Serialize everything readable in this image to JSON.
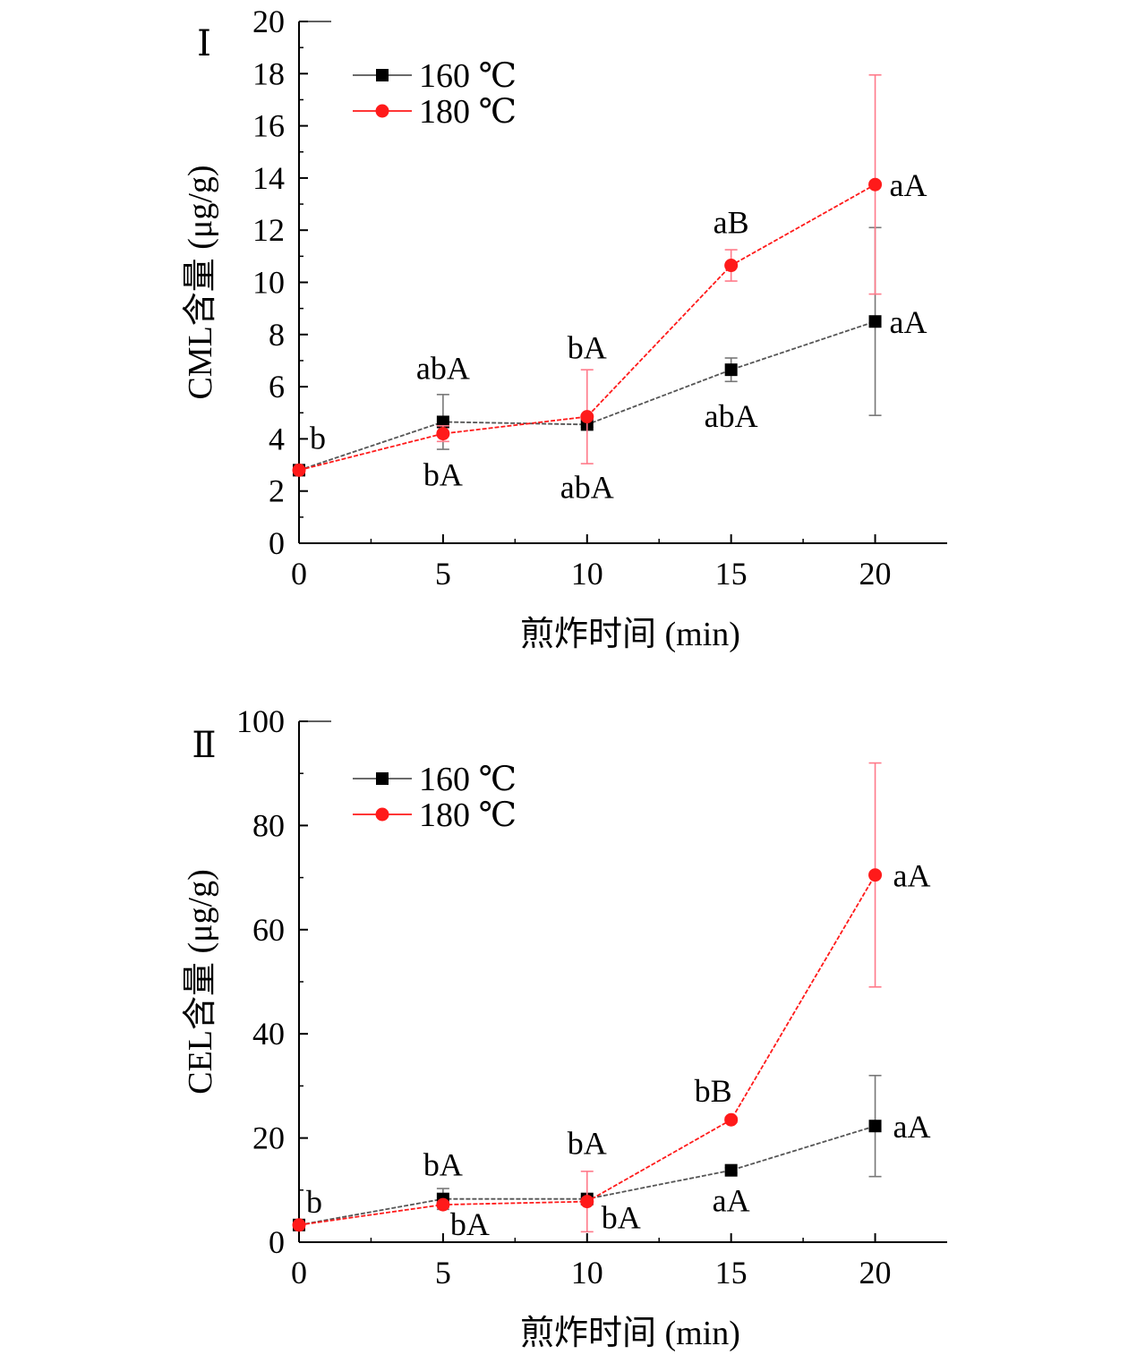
{
  "chart_data": [
    {
      "panel_label": "Ⅰ",
      "type": "line",
      "xlabel": "煎炸时间 (min)",
      "ylabel": "CML含量 (μg/g)",
      "x": [
        0,
        5,
        10,
        15,
        20
      ],
      "xticks": [
        "0",
        "5",
        "10",
        "15",
        "20"
      ],
      "yticks": [
        "0",
        "2",
        "4",
        "6",
        "8",
        "10",
        "12",
        "14",
        "16",
        "18",
        "20"
      ],
      "xlim": [
        0,
        22.5
      ],
      "ylim": [
        0,
        20
      ],
      "series": [
        {
          "name": "160 ℃",
          "color": "#000000",
          "line_color": "#555555",
          "marker": "square",
          "values": [
            2.8,
            4.65,
            4.55,
            6.65,
            8.5
          ],
          "errors": [
            0,
            1.05,
            0.1,
            0.45,
            3.6
          ]
        },
        {
          "name": "180 ℃",
          "color": "#ff1a1a",
          "line_color": "#ff1a1a",
          "marker": "circle",
          "values": [
            2.8,
            4.2,
            4.85,
            10.65,
            13.75
          ],
          "errors": [
            0,
            0.3,
            1.8,
            0.6,
            4.2
          ]
        }
      ],
      "annotations": [
        {
          "text": "b",
          "x": 0,
          "y": 2.8
        },
        {
          "text": "abA",
          "x": 5,
          "y": 4.65
        },
        {
          "text": "bA",
          "x": 5,
          "y": 4.2
        },
        {
          "text": "bA",
          "x": 10,
          "y": 4.85
        },
        {
          "text": "abA",
          "x": 10,
          "y": 4.55
        },
        {
          "text": "aB",
          "x": 15,
          "y": 10.65
        },
        {
          "text": "abA",
          "x": 15,
          "y": 6.65
        },
        {
          "text": "aA",
          "x": 20,
          "y": 13.75
        },
        {
          "text": "aA",
          "x": 20,
          "y": 8.5
        }
      ],
      "legend_position": "top-left",
      "grid": false
    },
    {
      "panel_label": "Ⅱ",
      "type": "line",
      "xlabel": "煎炸时间 (min)",
      "ylabel": "CEL含量 (μg/g)",
      "x": [
        0,
        5,
        10,
        15,
        20
      ],
      "xticks": [
        "0",
        "5",
        "10",
        "15",
        "20"
      ],
      "yticks": [
        "0",
        "20",
        "40",
        "60",
        "80",
        "100"
      ],
      "xlim": [
        0,
        22.5
      ],
      "ylim": [
        0,
        100
      ],
      "series": [
        {
          "name": "160 ℃",
          "color": "#000000",
          "line_color": "#555555",
          "marker": "square",
          "values": [
            3.3,
            8.3,
            8.3,
            13.8,
            22.3
          ],
          "errors": [
            0,
            2.0,
            0.5,
            0.5,
            9.7
          ]
        },
        {
          "name": "180 ℃",
          "color": "#ff1a1a",
          "line_color": "#ff1a1a",
          "marker": "circle",
          "values": [
            3.3,
            7.2,
            7.8,
            23.5,
            70.5
          ],
          "errors": [
            0,
            0.5,
            5.8,
            0.5,
            21.5
          ]
        }
      ],
      "annotations": [
        {
          "text": "b",
          "x": 0,
          "y": 3.3
        },
        {
          "text": "bA",
          "x": 5,
          "y": 8.3
        },
        {
          "text": "bA",
          "x": 5,
          "y": 7.2
        },
        {
          "text": "bA",
          "x": 10,
          "y": 8.3
        },
        {
          "text": "bA",
          "x": 10,
          "y": 7.8
        },
        {
          "text": "bB",
          "x": 15,
          "y": 23.5
        },
        {
          "text": "aA",
          "x": 15,
          "y": 13.8
        },
        {
          "text": "aA",
          "x": 20,
          "y": 70.5
        },
        {
          "text": "aA",
          "x": 20,
          "y": 22.3
        }
      ],
      "legend_position": "top-left",
      "grid": false
    }
  ]
}
